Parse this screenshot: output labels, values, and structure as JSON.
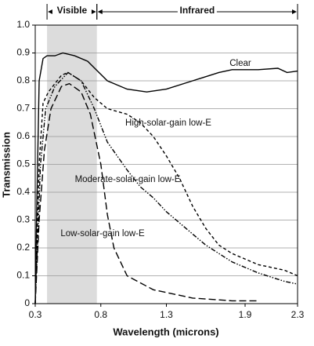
{
  "chart_data": {
    "type": "line",
    "xlabel": "Wavelength (microns)",
    "ylabel": "Transmission",
    "xlim": [
      0.3,
      2.3
    ],
    "ylim": [
      0,
      1
    ],
    "xticks": [
      0.3,
      0.8,
      1.3,
      1.9,
      2.3
    ],
    "yticks": [
      0,
      0.1,
      0.2,
      0.3,
      0.4,
      0.5,
      0.6,
      0.7,
      0.8,
      0.9,
      {
        "value": 1,
        "label": "1.0"
      }
    ],
    "grid": true,
    "regions": [
      {
        "label": "Visible",
        "from": 0.39,
        "to": 0.77,
        "shaded": true,
        "color": "#dcdcdc"
      },
      {
        "label": "Infrared",
        "from": 0.77,
        "to": 2.3,
        "shaded": false
      }
    ],
    "series": [
      {
        "name": "Clear",
        "color": "#000000",
        "dash": "none",
        "x": [
          0.3,
          0.31,
          0.33,
          0.36,
          0.39,
          0.45,
          0.51,
          0.6,
          0.7,
          0.85,
          1.0,
          1.15,
          1.3,
          1.5,
          1.7,
          1.8,
          2.0,
          2.15,
          2.22,
          2.3
        ],
        "values": [
          0,
          0.3,
          0.8,
          0.88,
          0.89,
          0.89,
          0.9,
          0.89,
          0.87,
          0.8,
          0.77,
          0.76,
          0.77,
          0.8,
          0.83,
          0.84,
          0.84,
          0.845,
          0.83,
          0.835
        ]
      },
      {
        "name": "High-solar-gain low-E",
        "color": "#000000",
        "dash": "4,3",
        "x": [
          0.3,
          0.33,
          0.36,
          0.4,
          0.5,
          0.55,
          0.65,
          0.75,
          0.85,
          1.0,
          1.1,
          1.2,
          1.3,
          1.4,
          1.5,
          1.6,
          1.7,
          1.8,
          2.0,
          2.2,
          2.3
        ],
        "values": [
          0,
          0.5,
          0.72,
          0.76,
          0.82,
          0.83,
          0.8,
          0.74,
          0.7,
          0.68,
          0.65,
          0.6,
          0.53,
          0.45,
          0.35,
          0.27,
          0.21,
          0.18,
          0.14,
          0.12,
          0.1
        ]
      },
      {
        "name": "Moderate-solar-gain low-E",
        "color": "#000000",
        "dash": "6,2,1.5,2,1.5,2",
        "x": [
          0.3,
          0.34,
          0.38,
          0.45,
          0.55,
          0.65,
          0.75,
          0.85,
          1.0,
          1.1,
          1.2,
          1.3,
          1.4,
          1.5,
          1.6,
          1.8,
          2.0,
          2.2,
          2.3
        ],
        "values": [
          0,
          0.5,
          0.7,
          0.78,
          0.83,
          0.8,
          0.7,
          0.58,
          0.48,
          0.42,
          0.38,
          0.33,
          0.29,
          0.25,
          0.21,
          0.15,
          0.11,
          0.08,
          0.07
        ]
      },
      {
        "name": "Low-solar-gain low-E",
        "color": "#000000",
        "dash": "9,4",
        "x": [
          0.3,
          0.33,
          0.37,
          0.42,
          0.5,
          0.56,
          0.65,
          0.72,
          0.8,
          0.85,
          0.9,
          1.0,
          1.2,
          1.5,
          1.8,
          2.0
        ],
        "values": [
          0,
          0.3,
          0.55,
          0.7,
          0.78,
          0.79,
          0.76,
          0.68,
          0.5,
          0.32,
          0.2,
          0.1,
          0.05,
          0.02,
          0.01,
          0.01
        ]
      }
    ]
  }
}
